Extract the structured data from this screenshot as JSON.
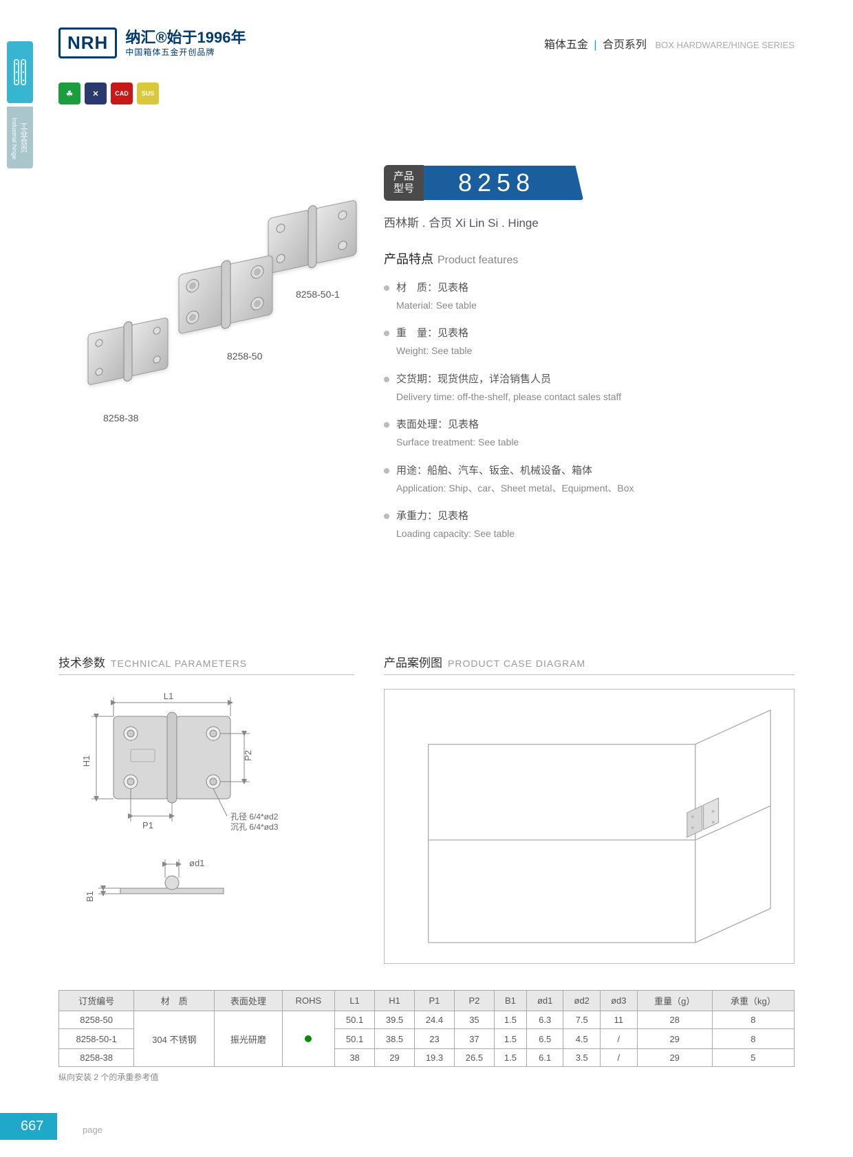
{
  "header": {
    "logo": "NRH",
    "logo_cn": "纳汇®始于1996年",
    "logo_sub": "中国箱体五金开创品牌",
    "category_zh": "箱体五金",
    "category_zh2": "合页系列",
    "category_en": "BOX HARDWARE/HINGE SERIES"
  },
  "side_tab": {
    "label": "工业合页",
    "label_en": "Industrial hinge"
  },
  "icons": [
    {
      "bg": "#1a9e3e",
      "txt": "☘"
    },
    {
      "bg": "#2a3a6e",
      "txt": "✕"
    },
    {
      "bg": "#c81818",
      "txt": "CAD"
    },
    {
      "bg": "#d9c93a",
      "txt": "SUS"
    }
  ],
  "model": {
    "tag_line1": "产品",
    "tag_line2": "型号",
    "number": "8258"
  },
  "subtitle": "西林斯 . 合页   Xi Lin Si . Hinge",
  "features": {
    "title_zh": "产品特点",
    "title_en": "Product features",
    "items": [
      {
        "zh": "材　质：见表格",
        "en": "Material: See table"
      },
      {
        "zh": "重　量：见表格",
        "en": "Weight: See table"
      },
      {
        "zh": "交货期：现货供应，详洽销售人员",
        "en": "Delivery time: off-the-shelf, please contact sales staff"
      },
      {
        "zh": "表面处理：见表格",
        "en": "Surface treatment:   See table"
      },
      {
        "zh": "用途：船舶、汽车、钣金、机械设备、箱体",
        "en": "Application: Ship、car、Sheet metal、Equipment、Box"
      },
      {
        "zh": "承重力：见表格",
        "en": "Loading capacity: See table"
      }
    ]
  },
  "image_labels": {
    "a": "8258-38",
    "b": "8258-50",
    "c": "8258-50-1"
  },
  "tech": {
    "title_zh": "技术参数",
    "title_en": "TECHNICAL PARAMETERS",
    "L1": "L1",
    "H1": "H1",
    "P1": "P1",
    "P2": "P2",
    "B1": "B1",
    "od1": "ød1",
    "hole1": "孔径 6/4*ød2",
    "hole2": "沉孔 6/4*ød3"
  },
  "case": {
    "title_zh": "产品案例图",
    "title_en": "PRODUCT CASE DIAGRAM"
  },
  "table": {
    "headers": [
      "订货编号",
      "材　质",
      "表面处理",
      "ROHS",
      "L1",
      "H1",
      "P1",
      "P2",
      "B1",
      "ød1",
      "ød2",
      "ød3",
      "重量（g）",
      "承重（kg）"
    ],
    "material": "304 不锈钢",
    "surface": "振光研磨",
    "rows": [
      [
        "8258-50",
        "",
        "",
        "",
        "50.1",
        "39.5",
        "24.4",
        "35",
        "1.5",
        "6.3",
        "7.5",
        "11",
        "28",
        "8"
      ],
      [
        "8258-50-1",
        "",
        "",
        "",
        "50.1",
        "38.5",
        "23",
        "37",
        "1.5",
        "6.5",
        "4.5",
        "/",
        "29",
        "8"
      ],
      [
        "8258-38",
        "",
        "",
        "",
        "38",
        "29",
        "19.3",
        "26.5",
        "1.5",
        "6.1",
        "3.5",
        "/",
        "29",
        "5"
      ]
    ],
    "note": "纵向安装 2 个的承重参考值"
  },
  "page": {
    "num": "667",
    "label": "page"
  }
}
